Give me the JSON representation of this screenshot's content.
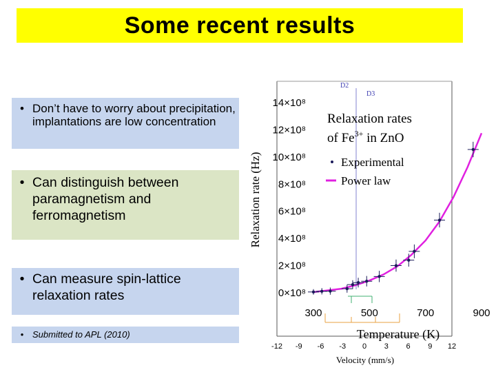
{
  "slide": {
    "title": "Some recent results",
    "bullets": [
      {
        "marker": "•",
        "text": "Don’t have to worry about precipitation, implantations are low concentration"
      },
      {
        "marker": "•",
        "text": "Can distinguish between paramagnetism and ferromagnetism"
      },
      {
        "marker": "•",
        "text": "Can measure spin-lattice relaxation rates"
      },
      {
        "marker": "•",
        "text": "Submitted to APL (2010)"
      }
    ]
  },
  "chart_data": {
    "type": "scatter",
    "title": "Relaxation rates of Fe3+ in ZnO",
    "title_line1": "Relaxation rates",
    "title_line2_prefix": "of Fe",
    "title_superscript": "3+",
    "title_line2_suffix": " in ZnO",
    "xlabel": "Temperature (K)",
    "ylabel": "Relaxation rate (Hz)",
    "xlim": [
      300,
      900
    ],
    "ylim": [
      0,
      1400000000
    ],
    "x_ticks": [
      "300",
      "500",
      "700",
      "900"
    ],
    "y_ticks": [
      "0×10⁸",
      "2×10⁸",
      "4×10⁸",
      "6×10⁸",
      "8×10⁸",
      "10×10⁸",
      "12×10⁸",
      "14×10⁸"
    ],
    "legend_position": "top-right",
    "series": [
      {
        "name": "Experimental",
        "kind": "points",
        "color": "#1a1a5a",
        "x": [
          300,
          330,
          360,
          420,
          440,
          460,
          490,
          535,
          595,
          640,
          660,
          750,
          870
        ],
        "y": [
          1000000,
          6000000,
          7000000,
          25000000,
          55000000,
          70000000,
          80000000,
          115000000,
          195000000,
          235000000,
          300000000,
          530000000,
          1050000000
        ]
      },
      {
        "name": "Power law",
        "kind": "line",
        "color": "#e020e0",
        "x": [
          300,
          400,
          450,
          500,
          550,
          600,
          650,
          700,
          750,
          800,
          850,
          900
        ],
        "y": [
          0,
          25000000,
          50000000,
          85000000,
          130000000,
          190000000,
          275000000,
          380000000,
          520000000,
          700000000,
          920000000,
          1170000000
        ]
      }
    ],
    "background_axis": {
      "xlabel": "Velocity (mm/s)",
      "x_ticks": [
        "-12",
        "-9",
        "-6",
        "-3",
        "0",
        "3",
        "6",
        "9",
        "12"
      ],
      "labels": [
        "D2",
        "D3"
      ]
    }
  }
}
